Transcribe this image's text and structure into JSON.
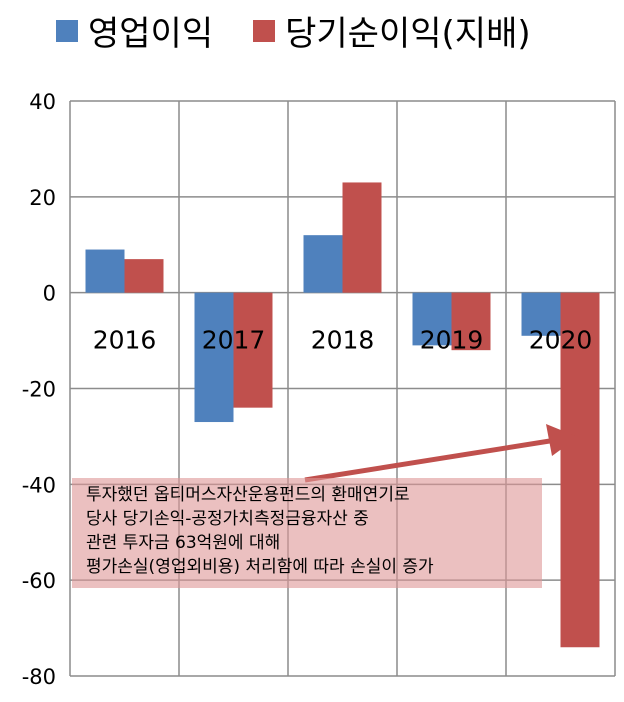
{
  "chart_data": {
    "type": "bar",
    "categories": [
      "2016",
      "2017",
      "2018",
      "2019",
      "2020"
    ],
    "series": [
      {
        "name": "영업이익",
        "values": [
          9,
          -27,
          12,
          -11,
          -9
        ],
        "color": "#4f81bd"
      },
      {
        "name": "당기순이익(지배)",
        "values": [
          7,
          -24,
          23,
          -12,
          -74
        ],
        "color": "#c0504d"
      }
    ],
    "ylim": [
      -80,
      40
    ],
    "yticks": [
      40,
      20,
      0,
      -20,
      -40,
      -60,
      -80
    ],
    "grid": true,
    "legend": "top",
    "annotation": {
      "lines": [
        "투자했던 옵티머스자산운용펀드의 환매연기로",
        "당사 당기손익-공정가치측정금융자산 중",
        "관련 투자금 63억원에 대해",
        "평가손실(영업외비용) 처리함에 따라 손실이 증가"
      ],
      "arrow_color": "#c0504d",
      "box_color": "#de9696"
    }
  }
}
